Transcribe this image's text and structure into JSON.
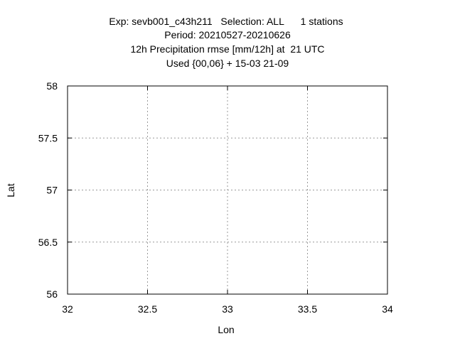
{
  "chart_data": {
    "type": "scatter",
    "title_lines": [
      "Exp: sevb001_c43h211   Selection: ALL      1 stations",
      "Period: 20210527-20210626",
      "12h Precipitation rmse [mm/12h] at  21 UTC",
      "Used {00,06} + 15-03 21-09"
    ],
    "xlabel": "Lon",
    "ylabel": "Lat",
    "xlim": [
      32,
      34
    ],
    "ylim": [
      56,
      58
    ],
    "x_ticks": [
      32,
      32.5,
      33,
      33.5,
      34
    ],
    "y_ticks": [
      56,
      56.5,
      57,
      57.5,
      58
    ],
    "x_tick_labels": [
      "32",
      "32.5",
      "33",
      "33.5",
      "34"
    ],
    "y_tick_labels": [
      "56",
      "56.5",
      "57",
      "57.5",
      "58"
    ],
    "grid": true,
    "points": []
  }
}
